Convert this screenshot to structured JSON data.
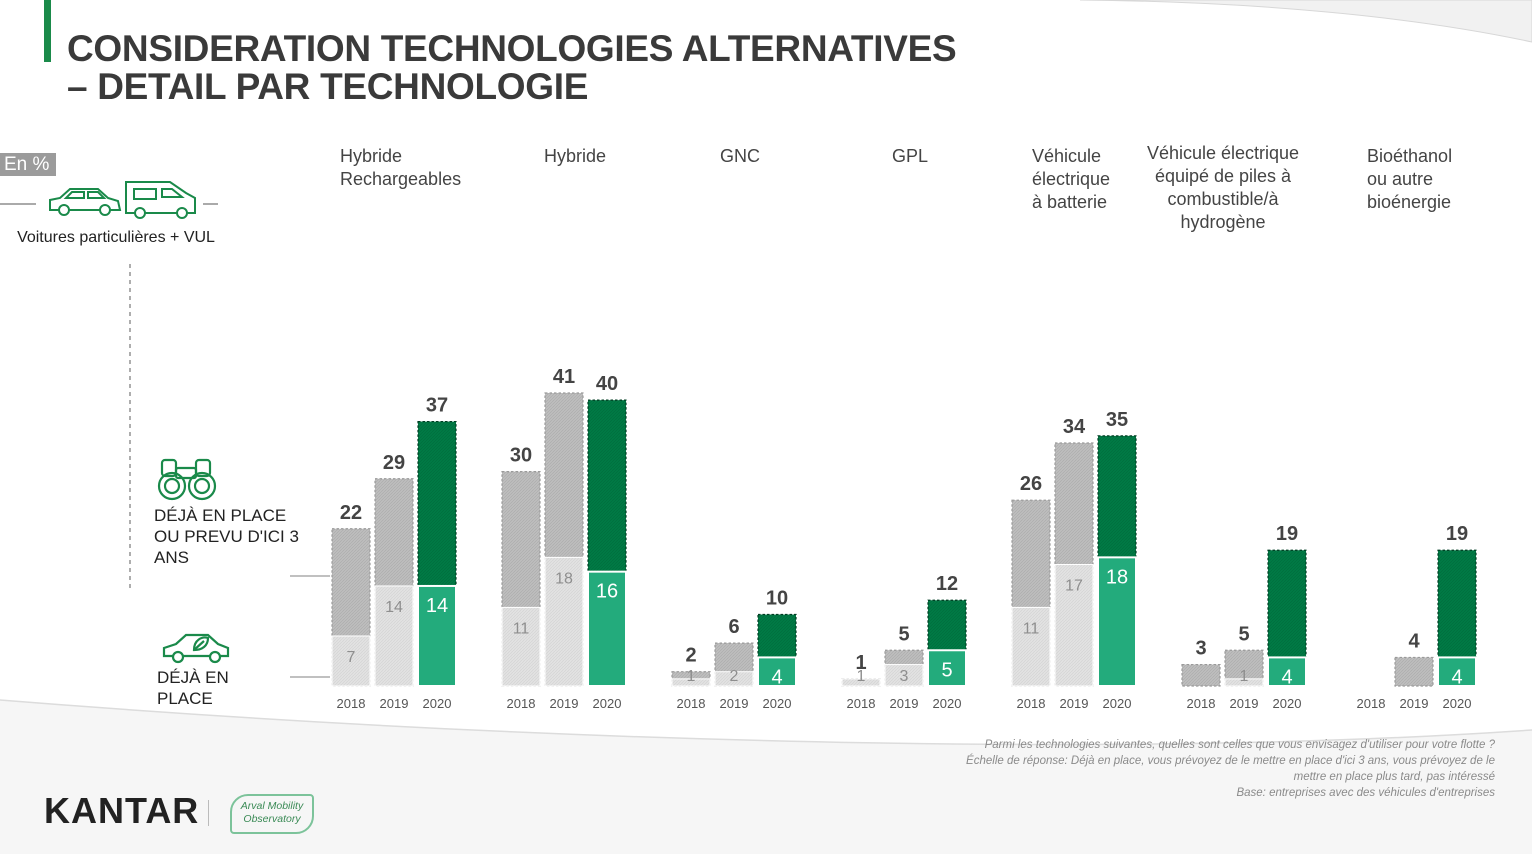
{
  "header": {
    "title_line1": "CONSIDERATION TECHNOLOGIES ALTERNATIVES",
    "title_line2": "– DETAIL PAR TECHNOLOGIE"
  },
  "unit_badge": "En %",
  "scope_label": "Voitures particulières + VUL",
  "legend": {
    "planned": "DÉJÀ EN PLACE OU PREVU D'ICI 3 ANS",
    "in_place": "DÉJÀ EN PLACE"
  },
  "icons": {
    "scope": [
      "car-icon",
      "van-icon"
    ],
    "planned": "binoculars-icon",
    "in_place": "eco-car-icon"
  },
  "colors": {
    "accent": "#1a8a4a",
    "total_2020": "#007a45",
    "in_place_2020": "#23ab7c",
    "total_past": "#bdbdbd",
    "in_place_past": "#e2e2e2"
  },
  "chart_data": {
    "type": "bar",
    "title": "",
    "categories": [
      "2018",
      "2019",
      "2020"
    ],
    "groups": [
      {
        "name": [
          "Hybride",
          "Rechargeables"
        ],
        "total": [
          22,
          29,
          37
        ],
        "in_place": [
          7,
          14,
          14
        ]
      },
      {
        "name": [
          "Hybride"
        ],
        "total": [
          30,
          41,
          40
        ],
        "in_place": [
          11,
          18,
          16
        ]
      },
      {
        "name": [
          "GNC"
        ],
        "total": [
          2,
          6,
          10
        ],
        "in_place": [
          1,
          2,
          4
        ]
      },
      {
        "name": [
          "GPL"
        ],
        "total": [
          1,
          5,
          12
        ],
        "in_place": [
          1,
          3,
          5
        ]
      },
      {
        "name": [
          "Véhicule",
          "électrique",
          "à batterie"
        ],
        "total": [
          26,
          34,
          35
        ],
        "in_place": [
          11,
          17,
          18
        ]
      },
      {
        "name": [
          "Véhicule électrique",
          "équipé de piles à",
          "combustible/à",
          "hydrogène"
        ],
        "total": [
          3,
          5,
          19
        ],
        "in_place": [
          null,
          1,
          4
        ]
      },
      {
        "name": [
          "Bioéthanol",
          "ou autre",
          "bioénergie"
        ],
        "total": [
          null,
          4,
          19
        ],
        "in_place": [
          null,
          null,
          4
        ]
      }
    ],
    "series": [
      {
        "name": "DÉJÀ EN PLACE OU PREVU D'ICI 3 ANS"
      },
      {
        "name": "DÉJÀ EN PLACE"
      }
    ],
    "ylim": [
      0,
      41
    ]
  },
  "footnote": {
    "line1": "Parmi les technologies suivantes, quelles sont celles que vous envisagez d'utiliser pour votre flotte ?",
    "line2": "Échelle de réponse: Déjà en place, vous prévoyez de le mettre en place d'ici 3 ans, vous prévoyez de le",
    "line3": "mettre en place plus tard, pas intéressé",
    "line4": "Base: entreprises avec des véhicules d'entreprises"
  },
  "logos": {
    "kantar": "KANTAR",
    "arval_line1": "Arval Mobility",
    "arval_line2": "Observatory"
  }
}
